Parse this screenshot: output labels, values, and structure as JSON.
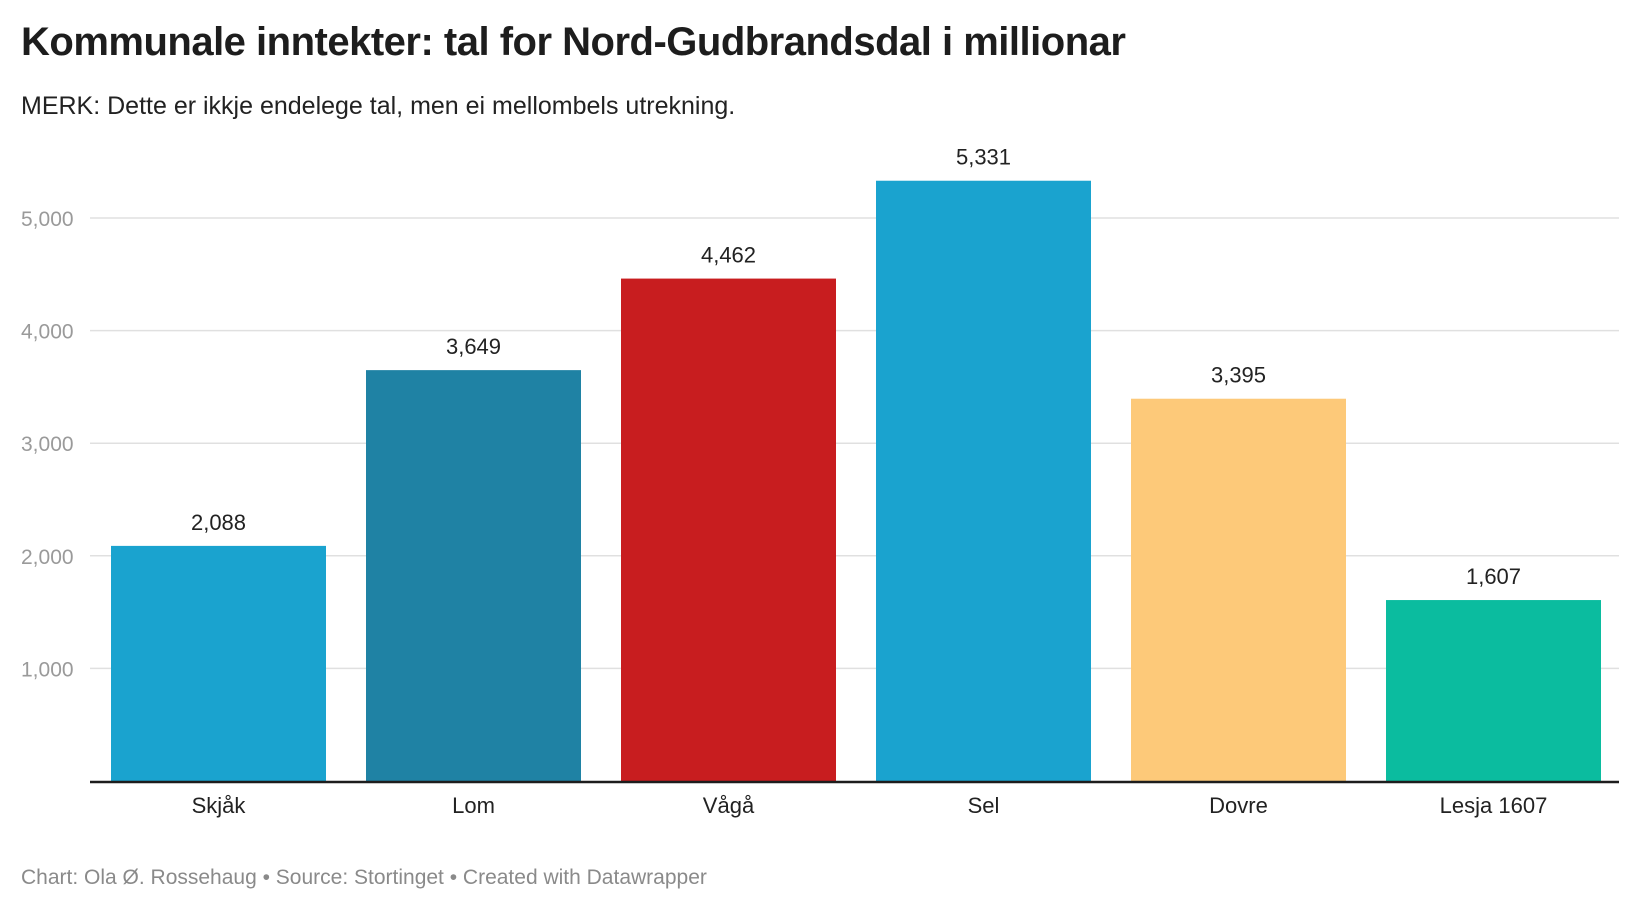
{
  "title": "Kommunale inntekter: tal for Nord-Gudbrandsdal i millionar",
  "subtitle": "MERK: Dette er ikkje endelege tal, men ei mellombels utrekning.",
  "footer": "Chart: Ola Ø. Rossehaug • Source: Stortinget • Created with Datawrapper",
  "chart_data": {
    "type": "bar",
    "categories": [
      "Skjåk",
      "Lom",
      "Vågå",
      "Sel",
      "Dovre",
      "Lesja 1607"
    ],
    "values": [
      2088,
      3649,
      4462,
      5331,
      3395,
      1607
    ],
    "value_labels": [
      "2,088",
      "3,649",
      "4,462",
      "5,331",
      "3,395",
      "1,607"
    ],
    "colors": [
      "#1aa3cf",
      "#1f82a4",
      "#c81d1f",
      "#1aa3cf",
      "#fdc979",
      "#0bbc9f"
    ],
    "yticks": [
      1000,
      2000,
      3000,
      4000,
      5000
    ],
    "ytick_labels": [
      "1,000",
      "2,000",
      "3,000",
      "4,000",
      "5,000"
    ],
    "ylim": [
      0,
      5331
    ],
    "grid": true,
    "xlabel": "",
    "ylabel": ""
  }
}
